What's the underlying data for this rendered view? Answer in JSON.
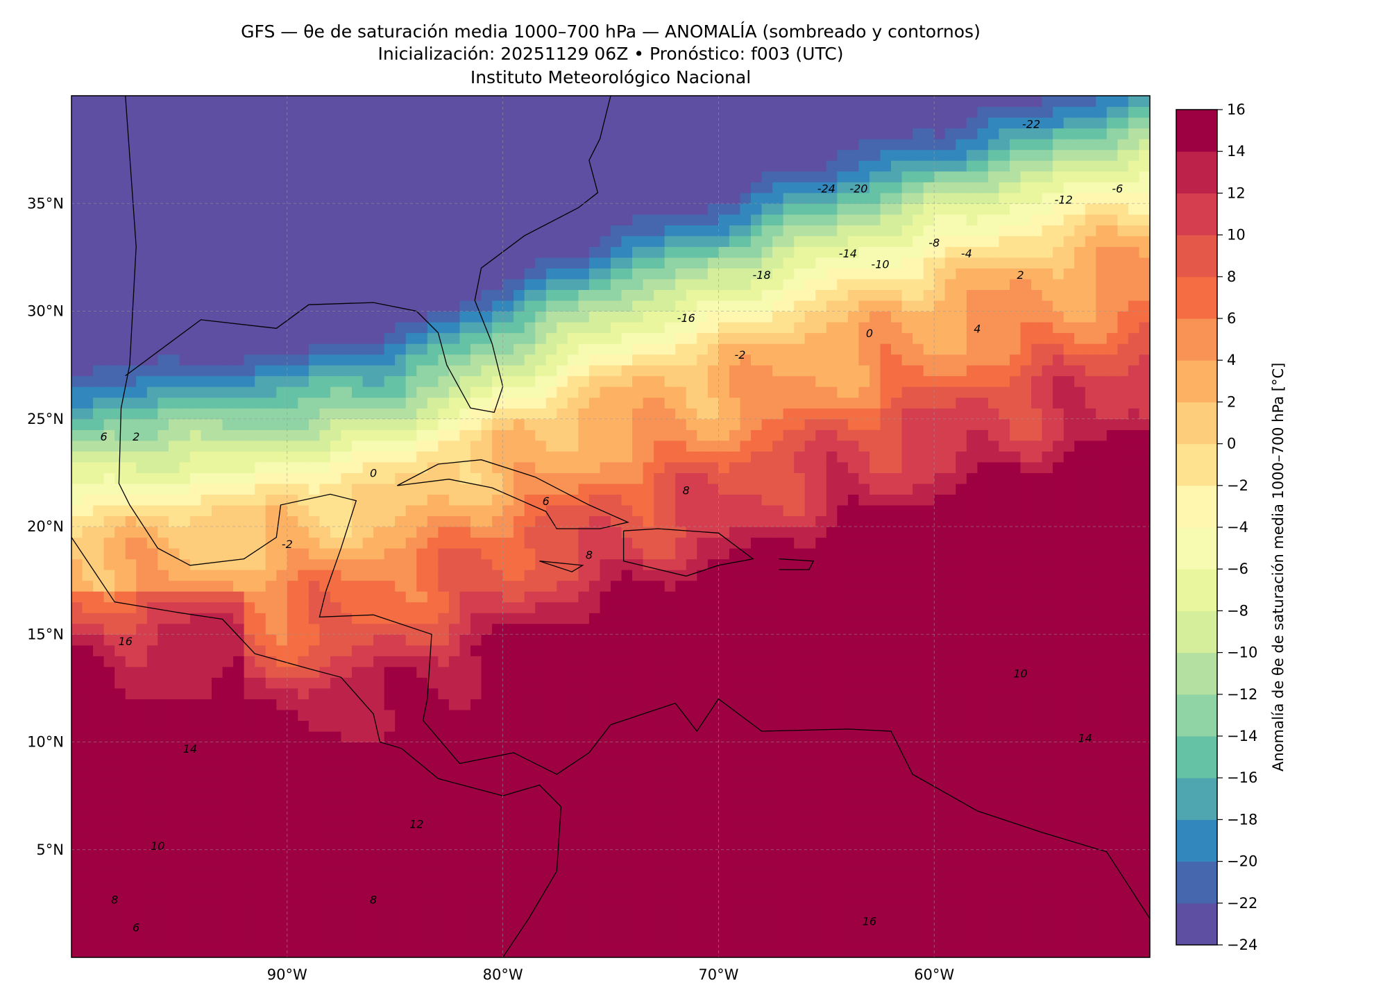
{
  "title": {
    "line1": "GFS — θe de saturación media 1000–700 hPa — ANOMALÍA (sombreado y contornos)",
    "line2": "Inicialización: 20251129 06Z   •   Pronóstico: f003 (UTC)",
    "line3": "Instituto Meteorológico Nacional"
  },
  "chart_data": {
    "type": "heatmap",
    "title": "GFS — θe de saturación media 1000–700 hPa — ANOMALÍA (sombreado y contornos)",
    "extent": {
      "lon": [
        -100,
        -50
      ],
      "lat": [
        0,
        40
      ]
    },
    "lat_ticks": [
      {
        "v": 35,
        "label": "35°N"
      },
      {
        "v": 30,
        "label": "30°N"
      },
      {
        "v": 25,
        "label": "25°N"
      },
      {
        "v": 20,
        "label": "20°N"
      },
      {
        "v": 15,
        "label": "15°N"
      },
      {
        "v": 10,
        "label": "10°N"
      },
      {
        "v": 5,
        "label": "5°N"
      }
    ],
    "lon_ticks": [
      {
        "v": -90,
        "label": "90°W"
      },
      {
        "v": -80,
        "label": "80°W"
      },
      {
        "v": -70,
        "label": "70°W"
      },
      {
        "v": -60,
        "label": "60°W"
      }
    ],
    "grid": true,
    "colorbar": {
      "label": "Anomalía de θe de saturación media 1000–700 hPa [°C]",
      "levels": [
        -24,
        -22,
        -20,
        -18,
        -16,
        -14,
        -12,
        -10,
        -8,
        -6,
        -4,
        -2,
        0,
        2,
        4,
        6,
        8,
        10,
        12,
        14,
        16
      ],
      "tick_labels": [
        "−24",
        "−22",
        "−20",
        "−18",
        "−16",
        "−14",
        "−12",
        "−10",
        "−8",
        "−6",
        "−4",
        "−2",
        "0",
        "2",
        "4",
        "6",
        "8",
        "10",
        "12",
        "14",
        "16"
      ],
      "colors": [
        "#5e4fa2",
        "#4666ae",
        "#3288bd",
        "#4fa6b1",
        "#66c2a5",
        "#90d3a4",
        "#b4e0a2",
        "#d5ee9b",
        "#e9f69d",
        "#f7fbb1",
        "#fff6b0",
        "#fee28f",
        "#fdcd7b",
        "#fdb163",
        "#f99355",
        "#f46d43",
        "#e4584a",
        "#d53e4f",
        "#bd234a",
        "#9e0142"
      ],
      "position": "right"
    },
    "zero_contour_lat": [
      {
        "lon": -100,
        "lat": 20
      },
      {
        "lon": -90,
        "lat": 21
      },
      {
        "lon": -85,
        "lat": 22
      },
      {
        "lon": -80,
        "lat": 24.5
      },
      {
        "lon": -75,
        "lat": 27
      },
      {
        "lon": -70,
        "lat": 28.5
      },
      {
        "lon": -65,
        "lat": 30.5
      },
      {
        "lon": -60,
        "lat": 32
      },
      {
        "lon": -55,
        "lat": 33.5
      },
      {
        "lon": -50,
        "lat": 35
      }
    ],
    "contour_labels": [
      {
        "lon": -71.5,
        "lat": 29.5,
        "text": "-16"
      },
      {
        "lon": -68,
        "lat": 31.5,
        "text": "-18"
      },
      {
        "lon": -64,
        "lat": 32.5,
        "text": "-14"
      },
      {
        "lon": -62.5,
        "lat": 32,
        "text": "-10"
      },
      {
        "lon": -60,
        "lat": 33,
        "text": "-8"
      },
      {
        "lon": -58.5,
        "lat": 32.5,
        "text": "-4"
      },
      {
        "lon": -54,
        "lat": 35,
        "text": "-12"
      },
      {
        "lon": -51.5,
        "lat": 35.5,
        "text": "-6"
      },
      {
        "lon": -65,
        "lat": 35.5,
        "text": "-24"
      },
      {
        "lon": -63.5,
        "lat": 35.5,
        "text": "-20"
      },
      {
        "lon": -55.5,
        "lat": 38.5,
        "text": "-22"
      },
      {
        "lon": -69,
        "lat": 27.8,
        "text": "-2"
      },
      {
        "lon": -63,
        "lat": 28.8,
        "text": "0"
      },
      {
        "lon": -56,
        "lat": 31.5,
        "text": "2"
      },
      {
        "lon": -58,
        "lat": 29,
        "text": "4"
      },
      {
        "lon": -78,
        "lat": 21,
        "text": "6"
      },
      {
        "lon": -76,
        "lat": 18.5,
        "text": "8"
      },
      {
        "lon": -71.5,
        "lat": 21.5,
        "text": "8"
      },
      {
        "lon": -56,
        "lat": 13,
        "text": "10"
      },
      {
        "lon": -96,
        "lat": 5,
        "text": "10"
      },
      {
        "lon": -84,
        "lat": 6,
        "text": "12"
      },
      {
        "lon": -94.5,
        "lat": 9.5,
        "text": "14"
      },
      {
        "lon": -53,
        "lat": 10,
        "text": "14"
      },
      {
        "lon": -97.5,
        "lat": 14.5,
        "text": "16"
      },
      {
        "lon": -63,
        "lat": 1.5,
        "text": "16"
      },
      {
        "lon": -98,
        "lat": 2.5,
        "text": "8"
      },
      {
        "lon": -86,
        "lat": 2.5,
        "text": "8"
      },
      {
        "lon": -97,
        "lat": 1.2,
        "text": "6"
      },
      {
        "lon": -98.5,
        "lat": 24,
        "text": "6"
      },
      {
        "lon": -97,
        "lat": 24,
        "text": "2"
      },
      {
        "lon": -86,
        "lat": 22.3,
        "text": "0"
      },
      {
        "lon": -90,
        "lat": 19,
        "text": "-2"
      }
    ]
  }
}
